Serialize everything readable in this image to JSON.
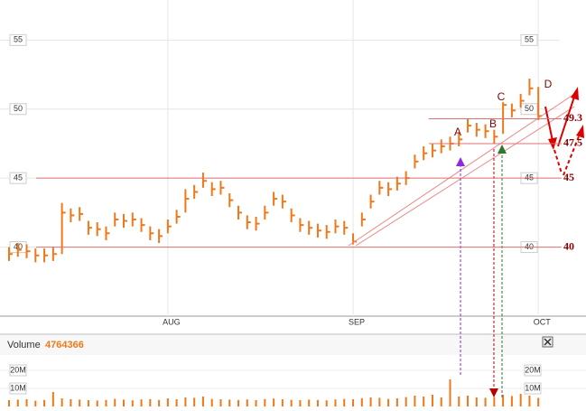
{
  "chart_data": [
    {
      "type": "ohlc",
      "color": "#f07818",
      "categories": [
        null,
        null,
        null,
        null,
        null,
        null,
        null,
        null,
        null,
        null,
        null,
        null,
        null,
        null,
        null,
        null,
        null,
        null,
        "AUG",
        null,
        null,
        null,
        null,
        null,
        null,
        null,
        null,
        null,
        null,
        null,
        null,
        null,
        null,
        null,
        null,
        null,
        null,
        null,
        null,
        "SEP",
        null,
        null,
        null,
        null,
        null,
        null,
        null,
        null,
        null,
        null,
        null,
        null,
        null,
        null,
        null,
        null,
        null,
        null,
        null,
        null,
        "OCT"
      ],
      "values": [
        39.5,
        39.8,
        39.7,
        39.4,
        39.4,
        39.5,
        42.5,
        42.3,
        42.4,
        41.4,
        41.3,
        41.0,
        42.0,
        41.9,
        42.0,
        41.6,
        41.0,
        40.8,
        41.5,
        42.2,
        43.5,
        44.0,
        44.8,
        44.2,
        44.3,
        43.4,
        42.5,
        41.8,
        41.7,
        42.5,
        43.5,
        43.3,
        42.3,
        41.6,
        41.4,
        41.2,
        41.1,
        41.5,
        41.4,
        40.4,
        42.0,
        43.3,
        44.3,
        44.2,
        44.6,
        45.0,
        46.2,
        46.8,
        47.0,
        47.3,
        47.5,
        47.8,
        48.8,
        48.5,
        48.4,
        48.0,
        50.3,
        49.9,
        50.6,
        51.5,
        49.5
      ],
      "highs": [
        40.0,
        40.3,
        40.2,
        39.9,
        39.9,
        40.0,
        43.2,
        42.8,
        42.9,
        41.9,
        41.8,
        41.5,
        42.5,
        42.4,
        42.5,
        42.1,
        41.5,
        41.3,
        42.0,
        42.7,
        44.2,
        44.5,
        45.4,
        44.7,
        44.8,
        43.9,
        43.0,
        42.3,
        42.2,
        43.0,
        44.0,
        43.8,
        42.8,
        42.1,
        41.9,
        41.7,
        41.6,
        42.0,
        41.9,
        41.0,
        42.5,
        43.8,
        44.8,
        44.7,
        45.1,
        45.5,
        46.7,
        47.3,
        47.5,
        47.8,
        48.0,
        48.3,
        49.3,
        49.0,
        48.9,
        48.5,
        50.5,
        50.4,
        51.1,
        52.2,
        51.6
      ],
      "lows": [
        39.0,
        39.3,
        39.2,
        38.9,
        38.9,
        39.0,
        39.5,
        41.8,
        41.9,
        40.9,
        40.8,
        40.5,
        41.5,
        41.4,
        41.5,
        41.1,
        40.5,
        40.3,
        41.0,
        41.7,
        42.5,
        43.5,
        44.3,
        43.7,
        43.8,
        42.9,
        42.0,
        41.3,
        41.2,
        42.0,
        43.0,
        42.8,
        41.8,
        41.1,
        40.9,
        40.7,
        40.6,
        41.0,
        40.9,
        40.2,
        41.5,
        42.8,
        43.8,
        43.7,
        44.1,
        44.5,
        45.7,
        46.3,
        46.5,
        46.8,
        47.0,
        47.3,
        48.3,
        48.0,
        47.9,
        47.5,
        48.2,
        49.4,
        50.1,
        51.0,
        49.2
      ],
      "ylim": [
        35,
        57.9
      ],
      "yticks": [
        40,
        45,
        50,
        55
      ],
      "grid": true,
      "levels": [
        49.3,
        47.5,
        45,
        40
      ],
      "annotations": [
        "A",
        "B",
        "C",
        "D"
      ]
    },
    {
      "type": "bar",
      "title": "Volume",
      "color": "#f07818",
      "values": [
        3500000,
        3800000,
        4000000,
        3200000,
        3600000,
        8000000,
        4500000,
        4000000,
        3800000,
        3500000,
        3300000,
        3600000,
        4200000,
        3800000,
        3400000,
        3900000,
        4100000,
        3600000,
        4500000,
        4000000,
        5000000,
        4800000,
        5500000,
        4200000,
        4000000,
        3800000,
        3600000,
        3900000,
        3500000,
        4100000,
        4400000,
        4000000,
        3700000,
        3500000,
        3800000,
        3600000,
        3400000,
        3900000,
        4200000,
        4000000,
        4600000,
        5000000,
        4800000,
        4200000,
        4500000,
        5200000,
        6000000,
        5500000,
        6500000,
        5000000,
        15000000,
        5500000,
        6000000,
        5000000,
        4800000,
        5200000,
        6500000,
        5800000,
        7000000,
        6000000,
        4764366
      ],
      "ylim": [
        0,
        22000000
      ],
      "yticks": [
        {
          "value": 10000000,
          "label": "10M"
        },
        {
          "value": 20000000,
          "label": "20M"
        }
      ]
    }
  ]
}
